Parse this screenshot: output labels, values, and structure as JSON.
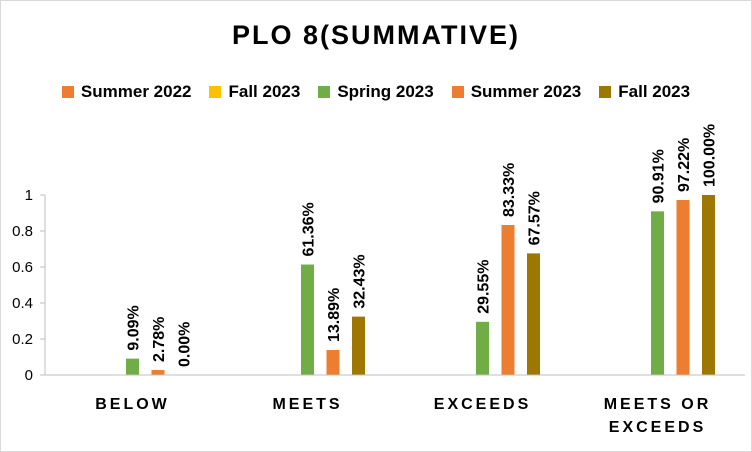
{
  "chart_data": {
    "type": "bar",
    "title": "PLO 8(SUMMATIVE)",
    "xlabel": "",
    "ylabel": "",
    "ylim": [
      0,
      1
    ],
    "yticks": [
      0,
      0.2,
      0.4,
      0.6,
      0.8,
      1
    ],
    "ytick_labels": [
      "0",
      "0.2",
      "0.4",
      "0.6",
      "0.8",
      "1"
    ],
    "grid": false,
    "legend_position": "top",
    "categories": [
      "BELOW",
      "MEETS",
      "EXCEEDS",
      "MEETS OR EXCEEDS"
    ],
    "category_label_lines": [
      [
        "BELOW"
      ],
      [
        "MEETS"
      ],
      [
        "EXCEEDS"
      ],
      [
        "MEETS OR",
        "EXCEEDS"
      ]
    ],
    "series": [
      {
        "name": "Summer 2022",
        "color": "#ed7d31",
        "values": [
          null,
          null,
          null,
          null
        ],
        "labels": [
          null,
          null,
          null,
          null
        ]
      },
      {
        "name": "Fall 2023",
        "color": "#ffc000",
        "values": [
          null,
          null,
          null,
          null
        ],
        "labels": [
          null,
          null,
          null,
          null
        ]
      },
      {
        "name": "Spring 2023",
        "color": "#70ad47",
        "values": [
          0.0909,
          0.6136,
          0.2955,
          0.9091
        ],
        "labels": [
          "9.09%",
          "61.36%",
          "29.55%",
          "90.91%"
        ]
      },
      {
        "name": "Summer 2023",
        "color": "#ed7d31",
        "values": [
          0.0278,
          0.1389,
          0.8333,
          0.9722
        ],
        "labels": [
          "2.78%",
          "13.89%",
          "83.33%",
          "97.22%"
        ]
      },
      {
        "name": "Fall 2023",
        "color": "#9e7700",
        "values": [
          0,
          0.3243,
          0.6757,
          1
        ],
        "labels": [
          "0.00%",
          "32.43%",
          "67.57%",
          "100.00%"
        ]
      }
    ]
  }
}
